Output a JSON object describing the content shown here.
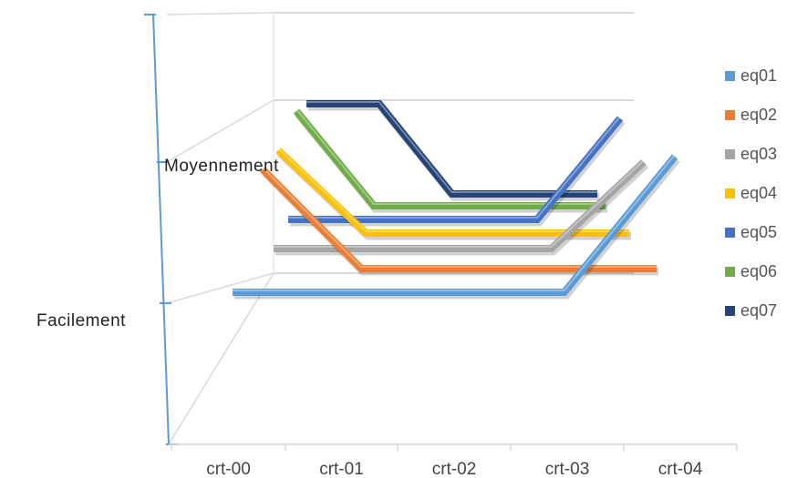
{
  "chart_data": {
    "type": "line",
    "style": "3d-ribbon",
    "categories": [
      "crt-00",
      "crt-01",
      "crt-02",
      "crt-03",
      "crt-04"
    ],
    "y_levels": [
      "Facilement",
      "Moyennement"
    ],
    "series": [
      {
        "name": "eq01",
        "color": "#5b9bd5",
        "values": [
          "Facilement",
          "Facilement",
          "Facilement",
          "Facilement",
          "Moyennement"
        ]
      },
      {
        "name": "eq02",
        "color": "#ed7d31",
        "values": [
          "Moyennement",
          "Facilement",
          "Facilement",
          "Facilement",
          "Facilement"
        ]
      },
      {
        "name": "eq03",
        "color": "#a5a5a5",
        "values": [
          "Facilement",
          "Facilement",
          "Facilement",
          "Facilement",
          "Moyennement"
        ]
      },
      {
        "name": "eq04",
        "color": "#ffc000",
        "values": [
          "Moyennement",
          "Facilement",
          "Facilement",
          "Facilement",
          "Facilement"
        ]
      },
      {
        "name": "eq05",
        "color": "#4472c4",
        "values": [
          "Facilement",
          "Facilement",
          "Facilement",
          "Facilement",
          "Moyennement"
        ]
      },
      {
        "name": "eq06",
        "color": "#70ad47",
        "values": [
          "Moyennement",
          "Facilement",
          "Facilement",
          "Facilement",
          "Facilement"
        ]
      },
      {
        "name": "eq07",
        "color": "#264478",
        "values": [
          "Moyennement",
          "Moyennement",
          "Facilement",
          "Facilement",
          "Facilement"
        ]
      }
    ],
    "legend_position": "right",
    "grid": true
  }
}
